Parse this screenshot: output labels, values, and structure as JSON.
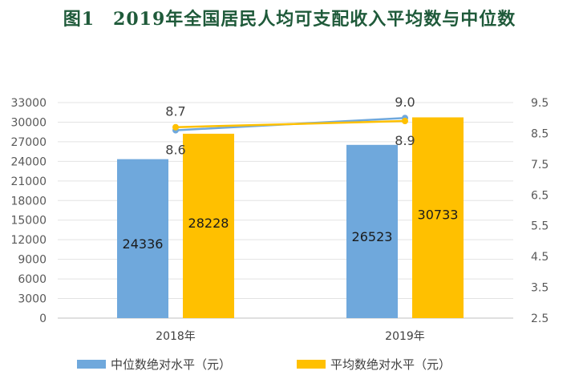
{
  "title": "图1　2019年全国居民人均可支配收入平均数与中位数",
  "chart_data": {
    "type": "bar",
    "categories": [
      "2018年",
      "2019年"
    ],
    "series": [
      {
        "name": "中位数绝对水平（元）",
        "kind": "bar",
        "axis": "left",
        "color": "#6fa8dc",
        "values": [
          24336,
          26523
        ]
      },
      {
        "name": "平均数绝对水平（元）",
        "kind": "bar",
        "axis": "left",
        "color": "#ffc000",
        "values": [
          28228,
          30733
        ]
      },
      {
        "kind": "line",
        "axis": "right",
        "color": "#6fa8dc",
        "values": [
          8.6,
          9.0
        ]
      },
      {
        "kind": "line",
        "axis": "right",
        "color": "#ffc000",
        "values": [
          8.7,
          8.9
        ]
      }
    ],
    "y_left": {
      "ticks": [
        "0",
        "3000",
        "6000",
        "9000",
        "12000",
        "15000",
        "18000",
        "21000",
        "24000",
        "27000",
        "30000",
        "33000"
      ],
      "min": 0,
      "max": 33000
    },
    "y_right": {
      "ticks": [
        "2.5",
        "3.5",
        "4.5",
        "5.5",
        "6.5",
        "7.5",
        "8.5",
        "9.5"
      ],
      "min": 2.5,
      "max": 9.5
    },
    "line_labels": [
      {
        "text": "8.7",
        "category": 0,
        "value": 8.7,
        "placement": "above"
      },
      {
        "text": "8.6",
        "category": 0,
        "value": 8.6,
        "placement": "below"
      },
      {
        "text": "9.0",
        "category": 1,
        "value": 9.0,
        "placement": "above"
      },
      {
        "text": "8.9",
        "category": 1,
        "value": 8.9,
        "placement": "below"
      }
    ],
    "grid": true,
    "legend_position": "bottom"
  }
}
